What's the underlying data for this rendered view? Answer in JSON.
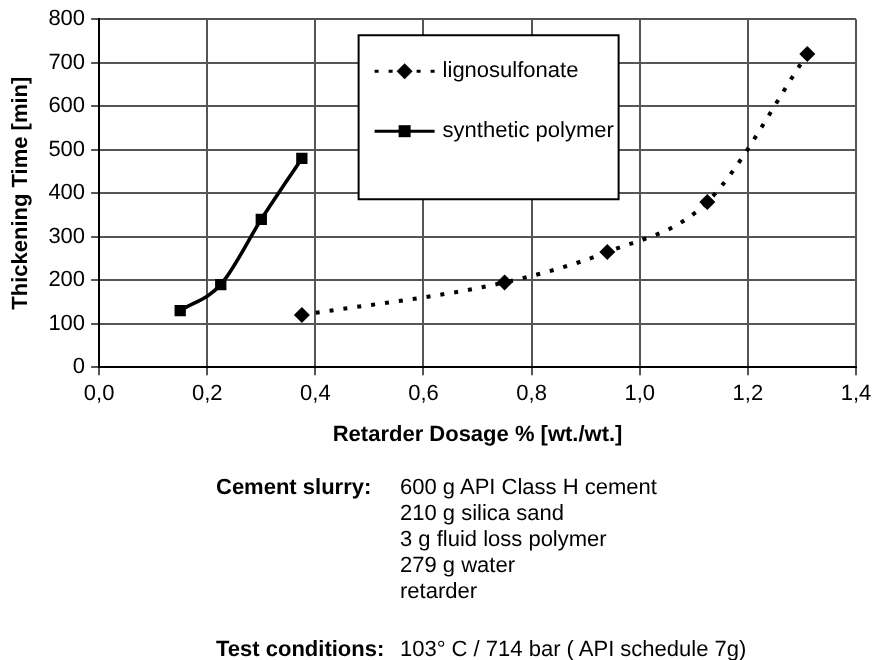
{
  "chart_data": {
    "type": "line",
    "xlabel": "Retarder Dosage % [wt./wt.]",
    "ylabel": "Thickening Time [min]",
    "series": [
      {
        "name": "lignosulfonate",
        "color": "#000000",
        "marker": "diamond",
        "line_style": "dotted",
        "x": [
          0.375,
          0.75,
          0.94,
          1.125,
          1.31
        ],
        "values": [
          120,
          195,
          265,
          380,
          720
        ]
      },
      {
        "name": "synthetic polymer",
        "color": "#000000",
        "marker": "square",
        "line_style": "solid",
        "x": [
          0.15,
          0.225,
          0.3,
          0.375
        ],
        "values": [
          130,
          190,
          340,
          480
        ]
      }
    ],
    "xlim": [
      0,
      1.4
    ],
    "xticks": [
      {
        "value": 0,
        "label": "0,0"
      },
      {
        "value": 0.2,
        "label": "0,2"
      },
      {
        "value": 0.4,
        "label": "0,4"
      },
      {
        "value": 0.6,
        "label": "0,6"
      },
      {
        "value": 0.8,
        "label": "0,8"
      },
      {
        "value": 1,
        "label": "1,0"
      },
      {
        "value": 1.2,
        "label": "1,2"
      },
      {
        "value": 1.4,
        "label": "1,4"
      }
    ],
    "ylim": [
      0,
      800
    ],
    "yticks": [
      0,
      100,
      200,
      300,
      400,
      500,
      600,
      700,
      800
    ],
    "grid": true,
    "legend": "top",
    "annotations": [
      "Cement slurry:",
      "600 g API Class H cement",
      "210 g silica sand",
      "3 g fluid loss polymer",
      "279 g water",
      "retarder",
      "Test conditions:",
      "103° C / 714 bar ( API schedule 7g)"
    ]
  }
}
